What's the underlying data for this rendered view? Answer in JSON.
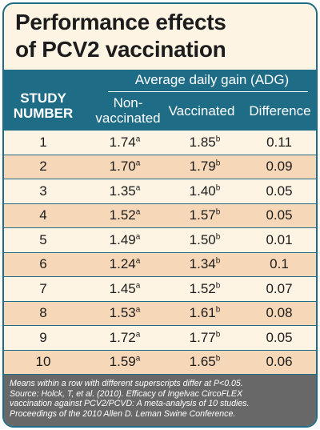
{
  "title": {
    "line1": "Performance effects",
    "line2": "of PCV2 vaccination"
  },
  "table": {
    "group_header": "Average daily gain (ADG)",
    "columns": {
      "study_line1": "STUDY",
      "study_line2": "NUMBER",
      "nonvac_line1": "Non-",
      "nonvac_line2": "vaccinated",
      "vaccinated": "Vaccinated",
      "difference": "Difference"
    },
    "rows": [
      {
        "study": "1",
        "nonvac": "1.74",
        "nonvac_sup": "a",
        "vac": "1.85",
        "vac_sup": "b",
        "diff": "0.11"
      },
      {
        "study": "2",
        "nonvac": "1.70",
        "nonvac_sup": "a",
        "vac": "1.79",
        "vac_sup": "b",
        "diff": "0.09"
      },
      {
        "study": "3",
        "nonvac": "1.35",
        "nonvac_sup": "a",
        "vac": "1.40",
        "vac_sup": "b",
        "diff": "0.05"
      },
      {
        "study": "4",
        "nonvac": "1.52",
        "nonvac_sup": "a",
        "vac": "1.57",
        "vac_sup": "b",
        "diff": "0.05"
      },
      {
        "study": "5",
        "nonvac": "1.49",
        "nonvac_sup": "a",
        "vac": "1.50",
        "vac_sup": "b",
        "diff": "0.01"
      },
      {
        "study": "6",
        "nonvac": "1.24",
        "nonvac_sup": "a",
        "vac": "1.34",
        "vac_sup": "b",
        "diff": "0.1"
      },
      {
        "study": "7",
        "nonvac": "1.45",
        "nonvac_sup": "a",
        "vac": "1.52",
        "vac_sup": "b",
        "diff": "0.07"
      },
      {
        "study": "8",
        "nonvac": "1.53",
        "nonvac_sup": "a",
        "vac": "1.61",
        "vac_sup": "b",
        "diff": "0.08"
      },
      {
        "study": "9",
        "nonvac": "1.72",
        "nonvac_sup": "a",
        "vac": "1.77",
        "vac_sup": "b",
        "diff": "0.05"
      },
      {
        "study": "10",
        "nonvac": "1.59",
        "nonvac_sup": "a",
        "vac": "1.65",
        "vac_sup": "b",
        "diff": "0.06"
      }
    ]
  },
  "footer": {
    "line1": "Means within a row with different superscripts differ at P<0.05.",
    "line2": "Source: Holck, T, et al. (2010). Efficacy of Ingelvac CircoFLEX",
    "line3": "vaccination against PCV2/PCVD: A meta-analysis of 10 studies.",
    "line4": "Proceedings of the 2010 Allen D. Leman Swine Conference."
  },
  "colors": {
    "header_blue": "#1e6c86",
    "cream_row": "#fdf4e3",
    "peach_row": "#f6d8b8",
    "footer_gray": "#686868"
  }
}
